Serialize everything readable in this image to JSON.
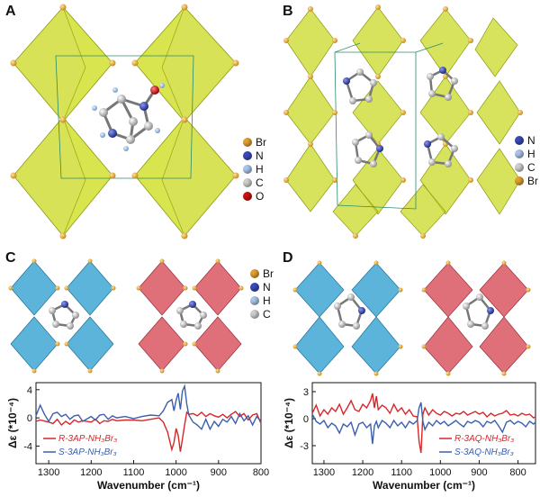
{
  "panels": {
    "A": {
      "letter": "A",
      "legend": [
        {
          "label": "Br",
          "color": "#e0a030"
        },
        {
          "label": "N",
          "color": "#3a4ab8"
        },
        {
          "label": "H",
          "color": "#a9c6e8"
        },
        {
          "label": "C",
          "color": "#cfcfcf"
        },
        {
          "label": "O",
          "color": "#d01010"
        }
      ]
    },
    "B": {
      "letter": "B",
      "legend": [
        {
          "label": "N",
          "color": "#3a4ab8"
        },
        {
          "label": "H",
          "color": "#a9c6e8"
        },
        {
          "label": "C",
          "color": "#cfcfcf"
        },
        {
          "label": "Br",
          "color": "#e0a030"
        }
      ]
    },
    "C": {
      "letter": "C",
      "legend": [
        {
          "label": "Br",
          "color": "#e0a030"
        },
        {
          "label": "N",
          "color": "#3a4ab8"
        },
        {
          "label": "H",
          "color": "#a9c6e8"
        },
        {
          "label": "C",
          "color": "#cfcfcf"
        }
      ]
    },
    "D": {
      "letter": "D"
    }
  },
  "colors": {
    "yellow": "#c9d81e",
    "blue": "#3fa7d4",
    "red": "#d95763",
    "series_red": "#d62728",
    "series_blue": "#3a5fae"
  },
  "chart_data": [
    {
      "type": "line",
      "xlabel": "Wavenumber (cm⁻¹)",
      "ylabel": "Δε (*10⁻⁴)",
      "xlim": [
        1330,
        800
      ],
      "ylim": [
        -6.5,
        5
      ],
      "xticks": [
        "1300",
        "1200",
        "1100",
        "1000",
        "900",
        "800"
      ],
      "yticks": [
        "4",
        "0",
        "-4"
      ],
      "series": [
        {
          "name": "R-3AP-NH₃Br₃",
          "color": "#d62728",
          "x": [
            1330,
            1320,
            1300,
            1290,
            1280,
            1270,
            1260,
            1250,
            1240,
            1230,
            1220,
            1200,
            1190,
            1180,
            1170,
            1160,
            1150,
            1140,
            1120,
            1100,
            1080,
            1060,
            1040,
            1030,
            1020,
            1010,
            1005,
            1000,
            995,
            990,
            985,
            980,
            975,
            970,
            960,
            950,
            940,
            930,
            920,
            910,
            900,
            890,
            880,
            870,
            860,
            850,
            840,
            830,
            820,
            810,
            800
          ],
          "y": [
            -0.5,
            -0.3,
            -0.6,
            -0.8,
            -0.2,
            -1.0,
            -0.5,
            -0.9,
            -0.3,
            -0.6,
            -0.4,
            -0.6,
            -0.2,
            -0.8,
            -0.4,
            -0.5,
            -0.2,
            -0.4,
            -0.3,
            -0.3,
            -0.4,
            -0.2,
            0.0,
            -0.6,
            -2.0,
            -4.5,
            -3.5,
            -1.5,
            -2.5,
            -4.8,
            -3.0,
            -1.0,
            0.8,
            0.5,
            0.6,
            0.3,
            0.8,
            0.2,
            0.6,
            0.3,
            0.1,
            0.5,
            0.0,
            0.5,
            0.9,
            0.2,
            0.6,
            -0.3,
            0.4,
            0.6,
            -0.8
          ]
        },
        {
          "name": "S-3AP-NH₃Br₃",
          "color": "#3a5fae",
          "x": [
            1330,
            1320,
            1310,
            1300,
            1290,
            1280,
            1270,
            1260,
            1250,
            1240,
            1230,
            1220,
            1200,
            1190,
            1180,
            1170,
            1160,
            1150,
            1140,
            1120,
            1100,
            1080,
            1060,
            1040,
            1030,
            1020,
            1010,
            1005,
            1000,
            995,
            990,
            985,
            980,
            975,
            970,
            960,
            950,
            940,
            930,
            920,
            910,
            900,
            890,
            880,
            870,
            860,
            850,
            840,
            830,
            820,
            810,
            800
          ],
          "y": [
            0.3,
            1.8,
            0.5,
            -0.5,
            0.6,
            0.8,
            0.2,
            0.5,
            -0.2,
            0.3,
            0.4,
            -0.5,
            0.2,
            -0.3,
            0.4,
            0.5,
            -0.2,
            0.3,
            0.0,
            0.2,
            -0.1,
            0.2,
            0.4,
            0.3,
            1.0,
            2.2,
            2.6,
            1.0,
            2.5,
            3.5,
            1.2,
            3.8,
            4.5,
            2.0,
            0.4,
            -0.6,
            -1.0,
            -1.6,
            -0.2,
            -1.6,
            -0.5,
            -1.2,
            -0.2,
            -0.6,
            0.2,
            -0.8,
            0.6,
            -0.4,
            0.3,
            -1.0,
            0.2,
            -0.5
          ]
        }
      ]
    },
    {
      "type": "line",
      "xlabel": "Wavenumber (cm⁻¹)",
      "ylabel": "Δε (*10⁻⁴)",
      "xlim": [
        1330,
        755
      ],
      "ylim": [
        -5,
        4
      ],
      "xticks": [
        "1300",
        "1200",
        "1100",
        "1000",
        "900",
        "800"
      ],
      "yticks": [
        "3",
        "0",
        "-3"
      ],
      "series": [
        {
          "name": "R-3AQ-NH₃Br₃",
          "color": "#d62728",
          "x": [
            1330,
            1320,
            1310,
            1300,
            1290,
            1280,
            1270,
            1260,
            1250,
            1240,
            1230,
            1220,
            1210,
            1200,
            1190,
            1180,
            1175,
            1170,
            1165,
            1160,
            1150,
            1140,
            1130,
            1120,
            1110,
            1100,
            1090,
            1080,
            1070,
            1060,
            1055,
            1050,
            1045,
            1040,
            1030,
            1020,
            1010,
            1000,
            990,
            980,
            970,
            960,
            950,
            940,
            930,
            920,
            910,
            900,
            890,
            880,
            870,
            860,
            850,
            840,
            830,
            820,
            810,
            800,
            790,
            780,
            770,
            760,
            755
          ],
          "y": [
            0.6,
            1.5,
            0.3,
            1.0,
            0.5,
            1.2,
            0.8,
            1.6,
            0.5,
            1.2,
            2.0,
            1.0,
            0.8,
            1.6,
            1.2,
            2.0,
            2.8,
            1.2,
            2.5,
            1.0,
            1.5,
            1.2,
            0.6,
            1.6,
            0.8,
            1.2,
            0.5,
            1.0,
            0.3,
            0.2,
            -2.5,
            -3.8,
            0.5,
            1.2,
            0.4,
            1.0,
            0.6,
            0.4,
            0.8,
            0.6,
            0.3,
            0.6,
            0.5,
            0.8,
            0.4,
            0.6,
            0.8,
            0.5,
            0.7,
            0.2,
            0.6,
            0.3,
            0.5,
            0.6,
            0.9,
            0.4,
            0.5,
            0.3,
            0.6,
            0.4,
            0.5,
            0.1,
            0.2
          ]
        },
        {
          "name": "S-3AQ-NH₃Br₃",
          "color": "#3a5fae",
          "x": [
            1330,
            1320,
            1310,
            1300,
            1290,
            1280,
            1270,
            1260,
            1250,
            1240,
            1230,
            1220,
            1210,
            1200,
            1190,
            1180,
            1175,
            1170,
            1165,
            1160,
            1150,
            1140,
            1130,
            1120,
            1110,
            1100,
            1090,
            1080,
            1070,
            1060,
            1055,
            1050,
            1045,
            1040,
            1030,
            1020,
            1010,
            1000,
            990,
            980,
            970,
            960,
            950,
            940,
            930,
            920,
            910,
            900,
            890,
            880,
            870,
            860,
            850,
            840,
            830,
            820,
            810,
            800,
            790,
            780,
            770,
            760,
            755
          ],
          "y": [
            0.5,
            -0.3,
            -0.6,
            -0.2,
            -1.0,
            -0.5,
            -0.8,
            -1.6,
            -0.6,
            -0.9,
            -0.4,
            -1.8,
            -0.6,
            -0.4,
            -1.0,
            -0.6,
            -2.8,
            -0.8,
            -0.3,
            -1.0,
            -0.2,
            -0.5,
            -1.0,
            -0.2,
            -0.8,
            -0.4,
            -1.0,
            -0.3,
            -0.6,
            -0.2,
            1.2,
            1.8,
            -0.3,
            -1.2,
            -0.4,
            -0.8,
            -0.2,
            -0.6,
            -0.3,
            -0.8,
            -0.5,
            -0.2,
            -0.6,
            -0.9,
            -0.3,
            -0.5,
            -0.2,
            -0.4,
            -0.9,
            -0.3,
            -0.5,
            -0.2,
            -0.8,
            -1.5,
            -0.4,
            -0.2,
            -0.6,
            -0.3,
            -0.5,
            -0.9,
            -0.3,
            -0.6,
            -0.4
          ]
        }
      ]
    }
  ]
}
